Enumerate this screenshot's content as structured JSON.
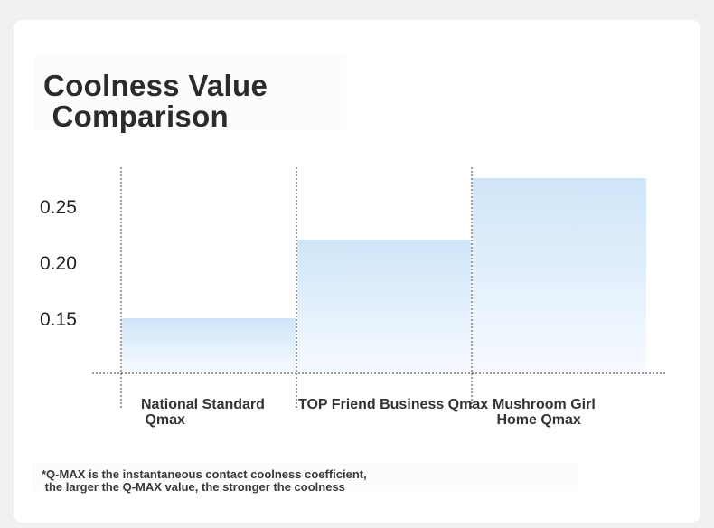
{
  "chart_data": {
    "type": "bar",
    "title": "Coolness Value\n Comparison",
    "categories": [
      "National Standard\n Qmax",
      "TOP Friend Business Qmax",
      "Mushroom Girl\n Home Qmax"
    ],
    "values": [
      0.15,
      0.22,
      0.275
    ],
    "yticks": [
      0.15,
      0.2,
      0.25
    ],
    "ytick_labels": [
      "0.15",
      "0.20",
      "0.25"
    ],
    "ylim": [
      0.1,
      0.29
    ],
    "xlabel": "",
    "ylabel": "",
    "grid": false,
    "bar_color_top": "#cfe5f8",
    "bar_color_bottom": "#f6faff",
    "footnote": "*Q-MAX is the instantaneous contact coolness coefficient,\n the larger the Q-MAX value, the stronger the coolness"
  }
}
